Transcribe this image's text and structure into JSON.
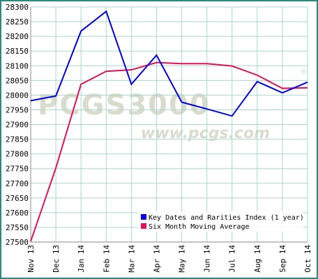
{
  "watermark": {
    "logo": "PCGS3000",
    "registered": "®",
    "site": "www.pcgs.com"
  },
  "colors": {
    "frame": "#2b8a7e",
    "grid": "#a8d8cc",
    "series_index": "#0000e0",
    "series_average": "#e0105a"
  },
  "chart_data": {
    "type": "line",
    "title": "",
    "xlabel": "",
    "ylabel": "",
    "categories": [
      "Nov 13",
      "Dec 13",
      "Jan 14",
      "Feb 14",
      "Mar 14",
      "Apr 14",
      "May 14",
      "Jun 14",
      "Jul 14",
      "Aug 14",
      "Sep 14",
      "Oct 14"
    ],
    "ylim": [
      27500,
      28300
    ],
    "yticks": [
      27500,
      27550,
      27600,
      27650,
      27700,
      27750,
      27800,
      27850,
      27900,
      27950,
      28000,
      28050,
      28100,
      28150,
      28200,
      28250,
      28300
    ],
    "grid": true,
    "legend_position": "bottom-right",
    "series": [
      {
        "name": "Key Dates and Rarities Index (1 year)",
        "color": "#0000e0",
        "values": [
          27981,
          27997,
          28218,
          28285,
          28037,
          28136,
          27976,
          27953,
          27929,
          28046,
          28008,
          28044
        ]
      },
      {
        "name": "Six Month Moving Average",
        "color": "#e0105a",
        "values": [
          27502,
          27752,
          28037,
          28081,
          28086,
          28111,
          28107,
          28107,
          28099,
          28068,
          28023,
          28025
        ]
      }
    ]
  }
}
